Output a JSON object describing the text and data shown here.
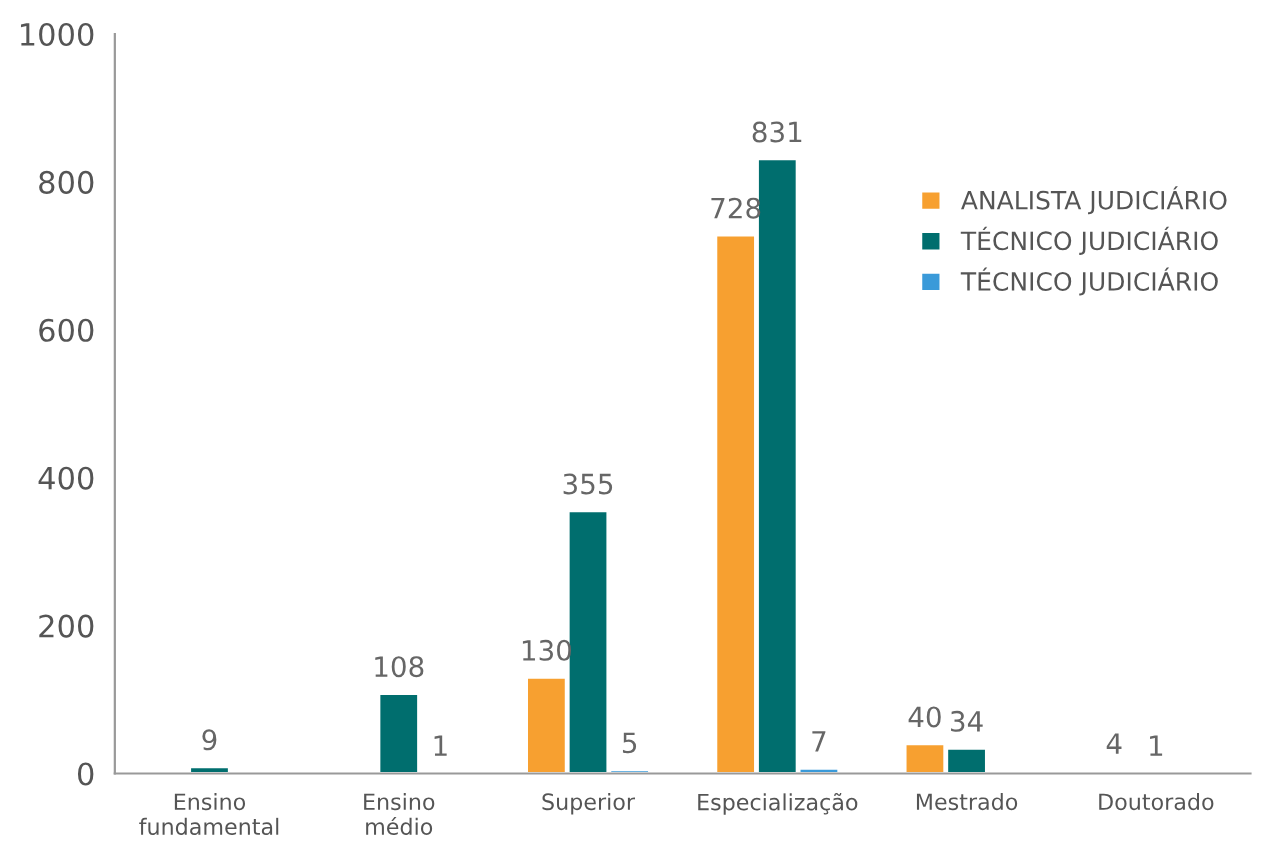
{
  "chart_data": {
    "type": "bar",
    "categories": [
      "Ensino\nfundamental",
      "Ensino\nmédio",
      "Superior",
      "Especialização",
      "Mestrado",
      "Doutorado"
    ],
    "series": [
      {
        "name": "ANALISTA JUDICIÁRIO",
        "color": "#f7a030",
        "values": [
          null,
          null,
          130,
          728,
          40,
          4
        ]
      },
      {
        "name": "TÉCNICO JUDICIÁRIO",
        "color": "#006e6e",
        "values": [
          9,
          108,
          355,
          831,
          34,
          1
        ]
      },
      {
        "name": "TÉCNICO JUDICIÁRIO",
        "color": "#3a9ad9",
        "values": [
          null,
          1,
          5,
          7,
          null,
          null
        ]
      }
    ],
    "ylim": [
      0,
      1000
    ],
    "yticks": [
      0,
      200,
      400,
      600,
      800,
      1000
    ],
    "data_labels": true,
    "legend": "right",
    "grid": false
  }
}
